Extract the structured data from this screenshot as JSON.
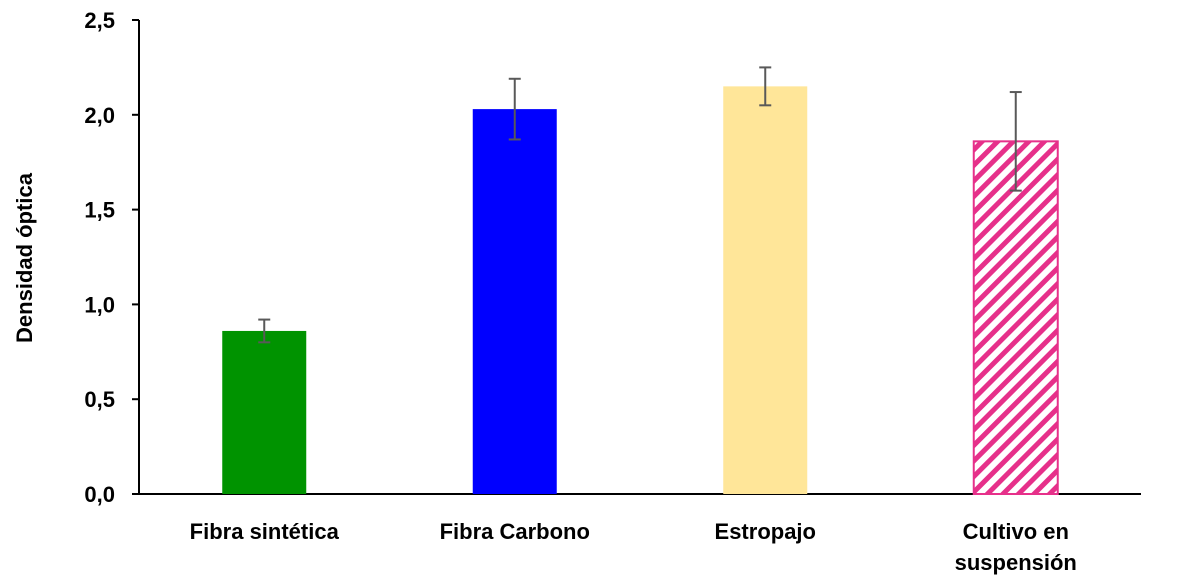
{
  "chart_data": {
    "type": "bar",
    "title": "",
    "xlabel": "",
    "ylabel": "Densidad óptica",
    "ylim": [
      0,
      2.5
    ],
    "yticks": [
      0,
      0.5,
      1.0,
      1.5,
      2.0,
      2.5
    ],
    "ytick_labels": [
      "0,0",
      "0,5",
      "1,0",
      "1,5",
      "2,0",
      "2,5"
    ],
    "grid": false,
    "legend": "none",
    "categories": [
      "Fibra sintética",
      "Fibra Carbono",
      "Estropajo",
      "Cultivo en suspensión"
    ],
    "category_label_lines": [
      [
        "Fibra sintética"
      ],
      [
        "Fibra Carbono"
      ],
      [
        "Estropajo"
      ],
      [
        "Cultivo en",
        "suspensión"
      ]
    ],
    "values": [
      0.86,
      2.03,
      2.15,
      1.86
    ],
    "error": [
      0.06,
      0.16,
      0.1,
      0.26
    ],
    "colors": [
      "#009300",
      "#0000ff",
      "#ffe699",
      "#e6308a"
    ],
    "fill_styles": [
      "solid",
      "solid",
      "solid",
      "diagonal-hatch"
    ],
    "error_bar_color": "#595959"
  }
}
